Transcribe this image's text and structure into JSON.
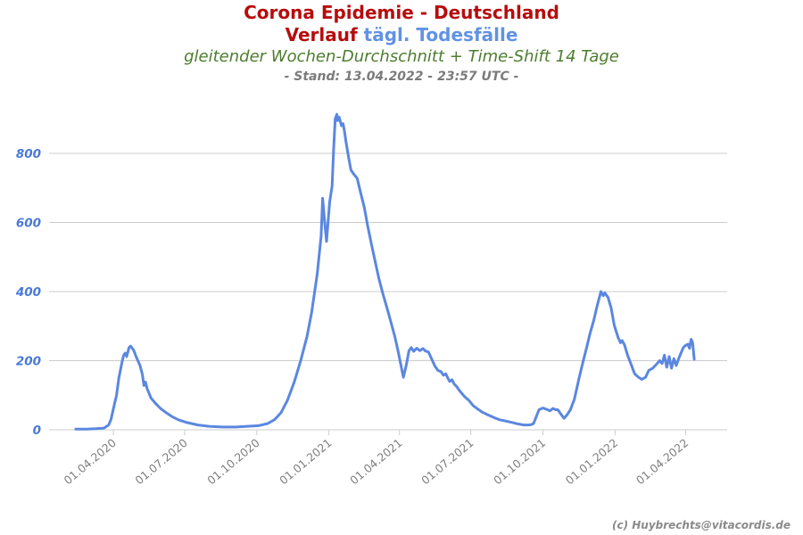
{
  "header": {
    "title_line1": "Corona Epidemie - Deutschland",
    "title_line2_red": "Verlauf",
    "title_line2_blue": "tägl. Todesfälle",
    "subtitle": "gleitender Wochen-Durchschnitt + Time-Shift 14 Tage",
    "stand": "- Stand: 13.04.2022 - 23:57 UTC -"
  },
  "footer": {
    "copyright": "(c) Huybrechts@vitacordis.de"
  },
  "colors": {
    "title_red": "#b60d0d",
    "title_blue": "#6292e3",
    "subtitle_green": "#4d7d2e",
    "stand_gray": "#7b7b7b",
    "line_blue": "#5b87e0",
    "axis_label_blue": "#4a79d9",
    "x_label_gray": "#7e7e7e",
    "grid_gray": "#cccccc"
  },
  "chart_data": {
    "type": "line",
    "title": "Corona Epidemie - Deutschland — Verlauf tägl. Todesfälle",
    "subtitle": "gleitender Wochen-Durchschnitt + Time-Shift 14 Tage",
    "status": "Stand: 13.04.2022 - 23:57 UTC",
    "xlabel": "",
    "ylabel": "",
    "grid": "horizontal",
    "legend": "none",
    "ylim": [
      0,
      960
    ],
    "y_ticks": [
      0,
      200,
      400,
      600,
      800
    ],
    "x_domain": [
      "2020-01-10",
      "2022-05-24"
    ],
    "x_ticks": [
      {
        "label": "01.04.2020",
        "date": "2020-04-01"
      },
      {
        "label": "01.07.2020",
        "date": "2020-07-01"
      },
      {
        "label": "01.10.2020",
        "date": "2020-10-01"
      },
      {
        "label": "01.01.2021",
        "date": "2021-01-01"
      },
      {
        "label": "01.04.2021",
        "date": "2021-04-01"
      },
      {
        "label": "01.07.2021",
        "date": "2021-07-01"
      },
      {
        "label": "01.10.2021",
        "date": "2021-10-01"
      },
      {
        "label": "01.01.2022",
        "date": "2022-01-01"
      },
      {
        "label": "01.04.2022",
        "date": "2022-04-01"
      }
    ],
    "series": [
      {
        "name": "tägl. Todesfälle (gleitender Wochen-Durchschnitt, Time-Shift 14 Tage)",
        "color": "#5b87e0",
        "points": [
          [
            "2020-02-13",
            2
          ],
          [
            "2020-02-27",
            2
          ],
          [
            "2020-03-10",
            3
          ],
          [
            "2020-03-20",
            5
          ],
          [
            "2020-03-26",
            14
          ],
          [
            "2020-03-29",
            30
          ],
          [
            "2020-04-01",
            60
          ],
          [
            "2020-04-05",
            100
          ],
          [
            "2020-04-08",
            150
          ],
          [
            "2020-04-12",
            195
          ],
          [
            "2020-04-14",
            215
          ],
          [
            "2020-04-16",
            222
          ],
          [
            "2020-04-18",
            212
          ],
          [
            "2020-04-21",
            238
          ],
          [
            "2020-04-23",
            242
          ],
          [
            "2020-04-27",
            230
          ],
          [
            "2020-04-30",
            212
          ],
          [
            "2020-05-05",
            186
          ],
          [
            "2020-05-08",
            160
          ],
          [
            "2020-05-10",
            128
          ],
          [
            "2020-05-12",
            138
          ],
          [
            "2020-05-14",
            120
          ],
          [
            "2020-05-19",
            92
          ],
          [
            "2020-05-25",
            76
          ],
          [
            "2020-05-31",
            62
          ],
          [
            "2020-06-07",
            50
          ],
          [
            "2020-06-15",
            38
          ],
          [
            "2020-06-23",
            29
          ],
          [
            "2020-07-04",
            21
          ],
          [
            "2020-07-18",
            14
          ],
          [
            "2020-08-01",
            10
          ],
          [
            "2020-08-18",
            8
          ],
          [
            "2020-09-04",
            8
          ],
          [
            "2020-09-19",
            10
          ],
          [
            "2020-10-03",
            12
          ],
          [
            "2020-10-15",
            18
          ],
          [
            "2020-10-24",
            30
          ],
          [
            "2020-11-01",
            50
          ],
          [
            "2020-11-09",
            85
          ],
          [
            "2020-11-18",
            140
          ],
          [
            "2020-11-26",
            200
          ],
          [
            "2020-12-04",
            270
          ],
          [
            "2020-12-10",
            340
          ],
          [
            "2020-12-17",
            450
          ],
          [
            "2020-12-22",
            560
          ],
          [
            "2020-12-24",
            670
          ],
          [
            "2020-12-27",
            590
          ],
          [
            "2020-12-29",
            545
          ],
          [
            "2020-12-31",
            605
          ],
          [
            "2021-01-02",
            660
          ],
          [
            "2021-01-05",
            705
          ],
          [
            "2021-01-07",
            810
          ],
          [
            "2021-01-09",
            900
          ],
          [
            "2021-01-11",
            913
          ],
          [
            "2021-01-12",
            895
          ],
          [
            "2021-01-14",
            905
          ],
          [
            "2021-01-17",
            880
          ],
          [
            "2021-01-19",
            886
          ],
          [
            "2021-01-21",
            862
          ],
          [
            "2021-01-23",
            830
          ],
          [
            "2021-01-26",
            790
          ],
          [
            "2021-01-29",
            752
          ],
          [
            "2021-02-01",
            742
          ],
          [
            "2021-02-06",
            728
          ],
          [
            "2021-02-10",
            690
          ],
          [
            "2021-02-15",
            645
          ],
          [
            "2021-02-19",
            595
          ],
          [
            "2021-02-24",
            540
          ],
          [
            "2021-03-01",
            487
          ],
          [
            "2021-03-06",
            435
          ],
          [
            "2021-03-11",
            392
          ],
          [
            "2021-03-17",
            345
          ],
          [
            "2021-03-21",
            312
          ],
          [
            "2021-03-26",
            270
          ],
          [
            "2021-03-30",
            230
          ],
          [
            "2021-04-03",
            185
          ],
          [
            "2021-04-06",
            152
          ],
          [
            "2021-04-10",
            190
          ],
          [
            "2021-04-13",
            228
          ],
          [
            "2021-04-16",
            238
          ],
          [
            "2021-04-19",
            227
          ],
          [
            "2021-04-23",
            236
          ],
          [
            "2021-04-27",
            229
          ],
          [
            "2021-05-01",
            235
          ],
          [
            "2021-05-04",
            228
          ],
          [
            "2021-05-08",
            225
          ],
          [
            "2021-05-12",
            205
          ],
          [
            "2021-05-16",
            185
          ],
          [
            "2021-05-20",
            172
          ],
          [
            "2021-05-24",
            168
          ],
          [
            "2021-05-27",
            158
          ],
          [
            "2021-05-30",
            162
          ],
          [
            "2021-06-02",
            148
          ],
          [
            "2021-06-04",
            140
          ],
          [
            "2021-06-07",
            145
          ],
          [
            "2021-06-10",
            132
          ],
          [
            "2021-06-13",
            125
          ],
          [
            "2021-06-17",
            112
          ],
          [
            "2021-06-23",
            96
          ],
          [
            "2021-06-29",
            84
          ],
          [
            "2021-07-04",
            70
          ],
          [
            "2021-07-10",
            60
          ],
          [
            "2021-07-15",
            52
          ],
          [
            "2021-07-21",
            45
          ],
          [
            "2021-07-27",
            39
          ],
          [
            "2021-08-02",
            33
          ],
          [
            "2021-08-07",
            29
          ],
          [
            "2021-08-13",
            26
          ],
          [
            "2021-08-19",
            23
          ],
          [
            "2021-08-25",
            20
          ],
          [
            "2021-08-30",
            17
          ],
          [
            "2021-09-04",
            15
          ],
          [
            "2021-09-08",
            14
          ],
          [
            "2021-09-12",
            14
          ],
          [
            "2021-09-16",
            15
          ],
          [
            "2021-09-19",
            18
          ],
          [
            "2021-09-22",
            35
          ],
          [
            "2021-09-26",
            58
          ],
          [
            "2021-10-01",
            63
          ],
          [
            "2021-10-05",
            60
          ],
          [
            "2021-10-10",
            55
          ],
          [
            "2021-10-14",
            62
          ],
          [
            "2021-10-17",
            58
          ],
          [
            "2021-10-20",
            58
          ],
          [
            "2021-10-23",
            48
          ],
          [
            "2021-10-28",
            33
          ],
          [
            "2021-11-01",
            44
          ],
          [
            "2021-11-05",
            58
          ],
          [
            "2021-11-10",
            88
          ],
          [
            "2021-11-16",
            148
          ],
          [
            "2021-11-22",
            205
          ],
          [
            "2021-11-26",
            240
          ],
          [
            "2021-11-30",
            278
          ],
          [
            "2021-12-05",
            318
          ],
          [
            "2021-12-09",
            358
          ],
          [
            "2021-12-14",
            400
          ],
          [
            "2021-12-17",
            388
          ],
          [
            "2021-12-19",
            396
          ],
          [
            "2021-12-23",
            383
          ],
          [
            "2021-12-27",
            352
          ],
          [
            "2021-12-31",
            302
          ],
          [
            "2022-01-05",
            266
          ],
          [
            "2022-01-08",
            252
          ],
          [
            "2022-01-10",
            258
          ],
          [
            "2022-01-13",
            246
          ],
          [
            "2022-01-17",
            216
          ],
          [
            "2022-01-22",
            186
          ],
          [
            "2022-01-26",
            162
          ],
          [
            "2022-01-31",
            152
          ],
          [
            "2022-02-04",
            146
          ],
          [
            "2022-02-09",
            152
          ],
          [
            "2022-02-13",
            172
          ],
          [
            "2022-02-18",
            178
          ],
          [
            "2022-02-23",
            190
          ],
          [
            "2022-02-27",
            200
          ],
          [
            "2022-03-02",
            192
          ],
          [
            "2022-03-05",
            216
          ],
          [
            "2022-03-08",
            181
          ],
          [
            "2022-03-11",
            212
          ],
          [
            "2022-03-14",
            178
          ],
          [
            "2022-03-17",
            206
          ],
          [
            "2022-03-20",
            186
          ],
          [
            "2022-03-23",
            205
          ],
          [
            "2022-03-26",
            222
          ],
          [
            "2022-03-29",
            238
          ],
          [
            "2022-04-01",
            244
          ],
          [
            "2022-04-04",
            248
          ],
          [
            "2022-04-06",
            236
          ],
          [
            "2022-04-08",
            262
          ],
          [
            "2022-04-10",
            252
          ],
          [
            "2022-04-12",
            204
          ]
        ]
      }
    ]
  }
}
